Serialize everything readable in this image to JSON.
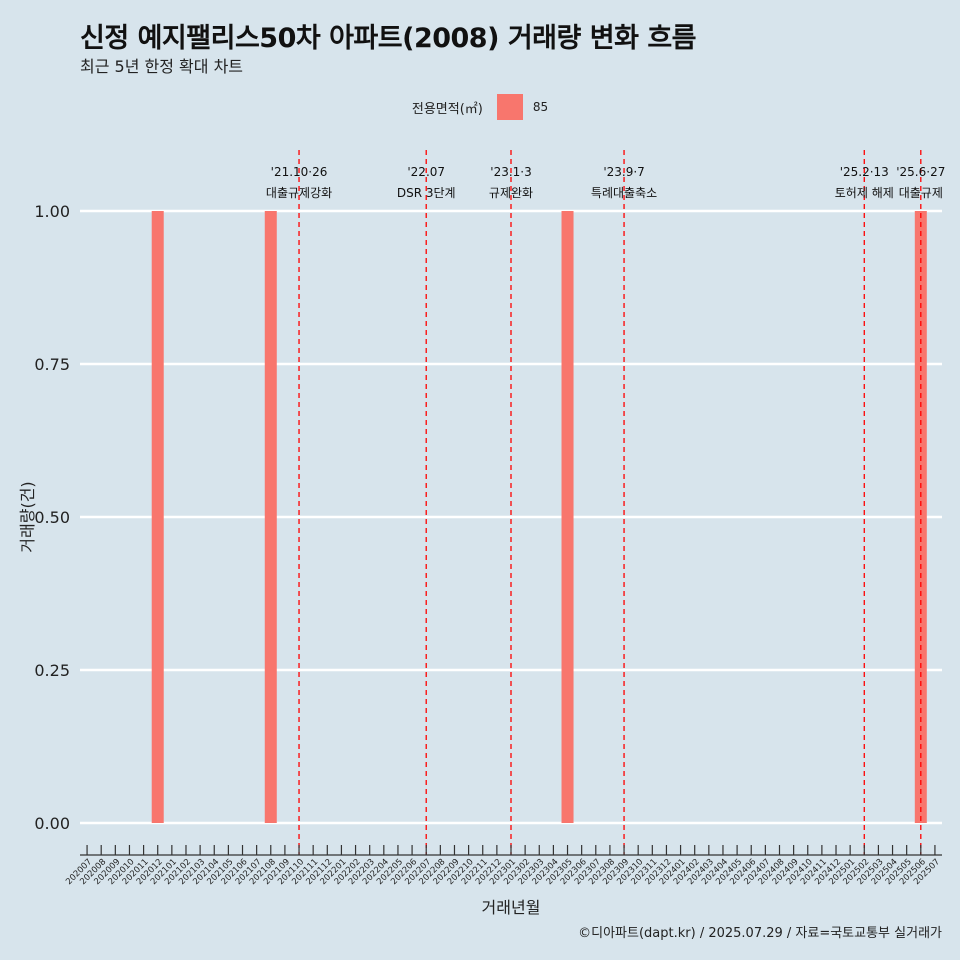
{
  "header": {
    "title": "신정 예지팰리스50차 아파트(2008) 거래량 변화 흐름",
    "subtitle": "최근 5년 한정 확대 차트"
  },
  "legend": {
    "title": "전용면적(㎡)",
    "entries": [
      {
        "label": "85",
        "color": "#f8766d"
      }
    ]
  },
  "caption": "©디아파트(dapt.kr) / 2025.07.29 / 자료=국토교통부 실거래가",
  "chart_data": {
    "type": "bar",
    "xlabel": "거래년월",
    "ylabel": "거래량(건)",
    "ylim": [
      0,
      1
    ],
    "yticks": [
      "0.00",
      "0.25",
      "0.50",
      "0.75",
      "1.00"
    ],
    "grid": true,
    "legend_position": "top",
    "categories": [
      "202007",
      "202008",
      "202009",
      "202010",
      "202011",
      "202012",
      "202101",
      "202102",
      "202103",
      "202104",
      "202105",
      "202106",
      "202107",
      "202108",
      "202109",
      "202110",
      "202111",
      "202112",
      "202201",
      "202202",
      "202203",
      "202204",
      "202205",
      "202206",
      "202207",
      "202208",
      "202209",
      "202210",
      "202211",
      "202212",
      "202301",
      "202302",
      "202303",
      "202304",
      "202305",
      "202306",
      "202307",
      "202308",
      "202309",
      "202310",
      "202311",
      "202312",
      "202401",
      "202402",
      "202403",
      "202404",
      "202405",
      "202406",
      "202407",
      "202408",
      "202409",
      "202410",
      "202411",
      "202412",
      "202501",
      "202502",
      "202503",
      "202504",
      "202505",
      "202506",
      "202507"
    ],
    "series": [
      {
        "name": "85",
        "color": "#f8766d",
        "points": [
          {
            "x": "202012",
            "y": 1
          },
          {
            "x": "202108",
            "y": 1
          },
          {
            "x": "202305",
            "y": 1
          },
          {
            "x": "202506",
            "y": 1
          }
        ]
      }
    ],
    "annotations": [
      {
        "x": "202110",
        "date": "'21.10·26",
        "label": "대출규제강화"
      },
      {
        "x": "202207",
        "date": "'22.07",
        "label": "DSR 3단계"
      },
      {
        "x": "202301",
        "date": "'23.1·3",
        "label": "규제완화"
      },
      {
        "x": "202309",
        "date": "'23.9·7",
        "label": "특례대출축소"
      },
      {
        "x": "202502",
        "date": "'25.2·13",
        "label": "토허제 해제"
      },
      {
        "x": "202506",
        "date": "'25.6·27",
        "label": "대출규제"
      }
    ]
  }
}
